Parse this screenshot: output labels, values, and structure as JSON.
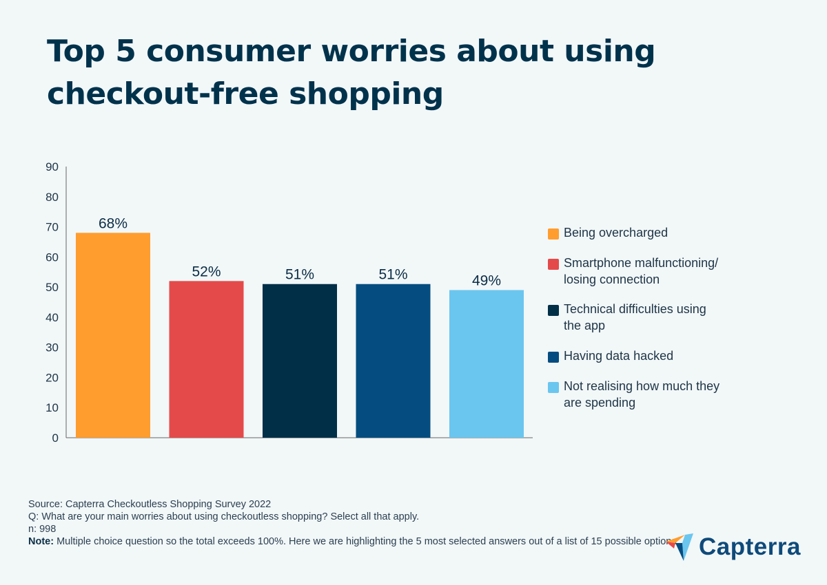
{
  "title": "Top 5 consumer worries about using checkout-free shopping",
  "chart_data": {
    "type": "bar",
    "title": "Top 5 consumer worries about using checkout-free shopping",
    "categories": [
      "Being overcharged",
      "Smartphone malfunctioning/ losing connection",
      "Technical difficulties using the app",
      "Having data hacked",
      "Not realising how much they are spending"
    ],
    "values": [
      68,
      52,
      51,
      51,
      49
    ],
    "data_labels": [
      "68%",
      "52%",
      "51%",
      "51%",
      "49%"
    ],
    "colors": [
      "#ff9d2e",
      "#e54a4a",
      "#002f47",
      "#054d80",
      "#6ac6ee"
    ],
    "ylim": [
      0,
      90
    ],
    "yticks": [
      0,
      10,
      20,
      30,
      40,
      50,
      60,
      70,
      80,
      90
    ],
    "xlabel": "",
    "ylabel": "",
    "grid": false,
    "legend_position": "right"
  },
  "legend": [
    {
      "label": "Being overcharged"
    },
    {
      "label": "Smartphone malfunctioning/\nlosing connection"
    },
    {
      "label": "Technical difficulties using\nthe app"
    },
    {
      "label": "Having data hacked"
    },
    {
      "label": "Not realising how much they\nare spending"
    }
  ],
  "footer": {
    "source": "Source: Capterra Checkoutless Shopping Survey 2022",
    "question": "Q: What are your main worries about using checkoutless shopping? Select all that apply.",
    "n": "n: 998",
    "note_label": "Note:",
    "note": " Multiple choice question so the total exceeds 100%. Here we are highlighting the 5 most selected answers out of a list of 15 possible options."
  },
  "logo": {
    "text": "Capterra"
  }
}
